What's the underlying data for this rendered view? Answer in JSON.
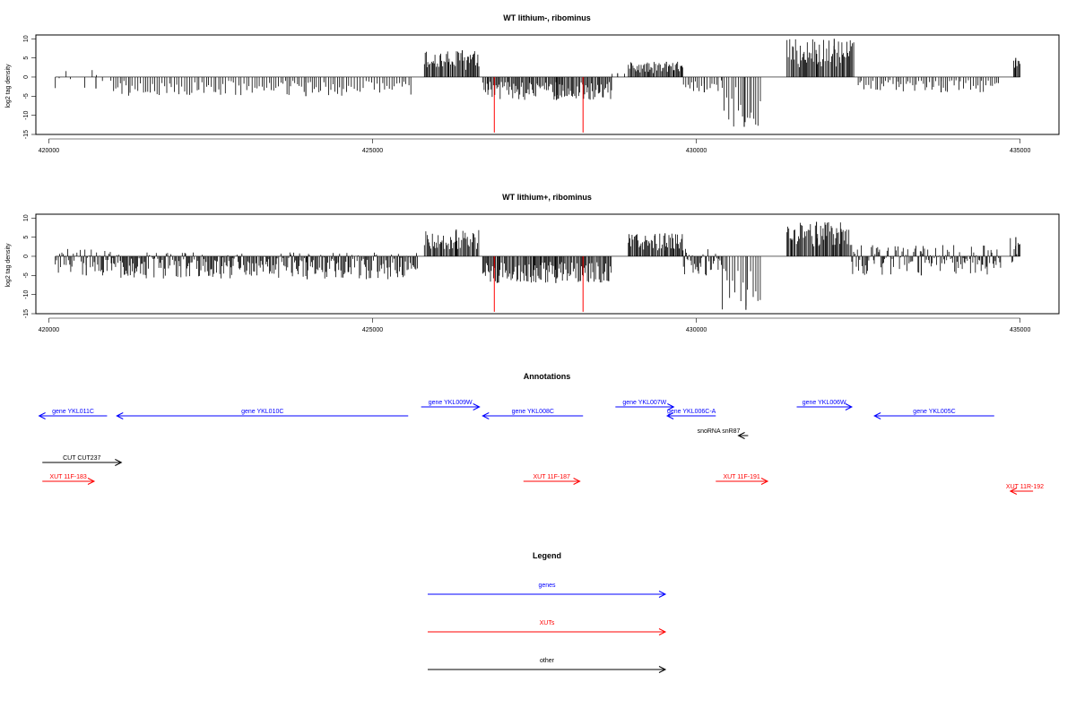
{
  "chart_data": [
    {
      "type": "bar",
      "title": "WT lithium-, ribominus",
      "ylabel": "log2 tag density",
      "xlabel": "",
      "xlim": [
        419800,
        435600
      ],
      "ylim": [
        -15,
        11
      ],
      "xticks": [
        "420000",
        "425000",
        "430000",
        "435000"
      ],
      "yticks": [
        "-15",
        "-10",
        "-5",
        "0",
        "5",
        "10"
      ],
      "grid": false,
      "colors": {
        "bars": "#000000",
        "highlight": "#ff0000"
      },
      "series": [
        {
          "values": [
            {
              "range": [
                420100,
                421000
              ],
              "y_min": -3,
              "y_max": 2,
              "density": "sparse"
            },
            {
              "range": [
                421000,
                425600
              ],
              "y_min": -5,
              "y_max": 0,
              "density": "medium"
            },
            {
              "range": [
                425800,
                426650
              ],
              "y_min": 0,
              "y_max": 7,
              "density": "dense"
            },
            {
              "range": [
                426700,
                428700
              ],
              "y_min": -6,
              "y_max": 0,
              "density": "dense"
            },
            {
              "range": [
                428700,
                428950
              ],
              "y_min": -1,
              "y_max": 1,
              "density": "sparse"
            },
            {
              "range": [
                428950,
                429800
              ],
              "y_min": 0,
              "y_max": 4,
              "density": "dense"
            },
            {
              "range": [
                429800,
                430400
              ],
              "y_min": -4,
              "y_max": 0,
              "density": "medium"
            },
            {
              "range": [
                430400,
                431000
              ],
              "y_min": -13,
              "y_max": 0,
              "density": "medium"
            },
            {
              "range": [
                431400,
                432450
              ],
              "y_min": 0,
              "y_max": 10,
              "density": "dense"
            },
            {
              "range": [
                432500,
                434700
              ],
              "y_min": -4,
              "y_max": 0,
              "density": "medium"
            },
            {
              "range": [
                434900,
                435000
              ],
              "y_min": 0,
              "y_max": 5,
              "density": "dense"
            }
          ]
        }
      ],
      "highlight_bars": [
        {
          "x": 426880,
          "y": -14.5
        },
        {
          "x": 428250,
          "y": -14.5
        }
      ]
    },
    {
      "type": "bar",
      "title": "WT lithium+, ribominus",
      "ylabel": "log2 tag density",
      "xlabel": "",
      "xlim": [
        419800,
        435600
      ],
      "ylim": [
        -15,
        11
      ],
      "xticks": [
        "420000",
        "425000",
        "430000",
        "435000"
      ],
      "yticks": [
        "-15",
        "-10",
        "-5",
        "0",
        "5",
        "10"
      ],
      "grid": false,
      "colors": {
        "bars": "#000000",
        "highlight": "#ff0000"
      },
      "series": [
        {
          "values": [
            {
              "range": [
                420100,
                421000
              ],
              "y_min": -5,
              "y_max": 2,
              "density": "dense"
            },
            {
              "range": [
                421000,
                425700
              ],
              "y_min": -6,
              "y_max": 1,
              "density": "dense"
            },
            {
              "range": [
                425800,
                426650
              ],
              "y_min": 0,
              "y_max": 7,
              "density": "dense"
            },
            {
              "range": [
                426700,
                428700
              ],
              "y_min": -7,
              "y_max": 0,
              "density": "dense"
            },
            {
              "range": [
                428950,
                429800
              ],
              "y_min": 0,
              "y_max": 6,
              "density": "dense"
            },
            {
              "range": [
                429800,
                430400
              ],
              "y_min": -5,
              "y_max": 2,
              "density": "dense"
            },
            {
              "range": [
                430400,
                431000
              ],
              "y_min": -14,
              "y_max": 0,
              "density": "medium"
            },
            {
              "range": [
                431400,
                432400
              ],
              "y_min": 0,
              "y_max": 9,
              "density": "dense"
            },
            {
              "range": [
                432400,
                434700
              ],
              "y_min": -5,
              "y_max": 3,
              "density": "dense"
            },
            {
              "range": [
                434850,
                435000
              ],
              "y_min": -2,
              "y_max": 5,
              "density": "dense"
            }
          ]
        }
      ],
      "highlight_bars": [
        {
          "x": 426880,
          "y": -14.5
        },
        {
          "x": 428250,
          "y": -14.5
        }
      ]
    }
  ],
  "annotations": {
    "title": "Annotations",
    "colors": {
      "genes": "#0000ff",
      "XUTs": "#ff0000",
      "other": "#000000"
    },
    "features": [
      {
        "label": "gene YKL011C",
        "start": 419850,
        "end": 420900,
        "strand": "-",
        "category": "genes",
        "row": 2
      },
      {
        "label": "gene YKL010C",
        "start": 421050,
        "end": 425550,
        "strand": "-",
        "category": "genes",
        "row": 2
      },
      {
        "label": "gene YKL009W",
        "start": 425750,
        "end": 426650,
        "strand": "+",
        "category": "genes",
        "row": 1
      },
      {
        "label": "gene YKL008C",
        "start": 426700,
        "end": 428250,
        "strand": "-",
        "category": "genes",
        "row": 2
      },
      {
        "label": "gene YKL007W",
        "start": 428750,
        "end": 429650,
        "strand": "+",
        "category": "genes",
        "row": 1
      },
      {
        "label": "gene YKL006C-A",
        "start": 429550,
        "end": 430300,
        "strand": "-",
        "category": "genes",
        "row": 2
      },
      {
        "label": "gene YKL006W",
        "start": 431550,
        "end": 432400,
        "strand": "+",
        "category": "genes",
        "row": 1
      },
      {
        "label": "gene YKL005C",
        "start": 432750,
        "end": 434600,
        "strand": "-",
        "category": "genes",
        "row": 2
      },
      {
        "label": "snoRNA snR87",
        "start": 430650,
        "end": 430800,
        "strand": "-",
        "category": "other",
        "row": 3
      },
      {
        "label": "CUT CUT237",
        "start": 419900,
        "end": 421120,
        "strand": "+",
        "category": "other",
        "row": 4
      },
      {
        "label": "XUT 11F-183",
        "start": 419900,
        "end": 420700,
        "strand": "+",
        "category": "XUTs",
        "row": 5
      },
      {
        "label": "XUT 11F-187",
        "start": 427330,
        "end": 428200,
        "strand": "+",
        "category": "XUTs",
        "row": 5
      },
      {
        "label": "XUT 11F-191",
        "start": 430300,
        "end": 431100,
        "strand": "+",
        "category": "XUTs",
        "row": 5
      },
      {
        "label": "XUT 11R-192",
        "start": 434850,
        "end": 435200,
        "strand": "-",
        "category": "XUTs",
        "row": 6
      }
    ]
  },
  "legend": {
    "title": "Legend",
    "items": [
      {
        "label": "genes",
        "color": "#0000ff"
      },
      {
        "label": "XUTs",
        "color": "#ff0000"
      },
      {
        "label": "other",
        "color": "#000000"
      }
    ]
  }
}
